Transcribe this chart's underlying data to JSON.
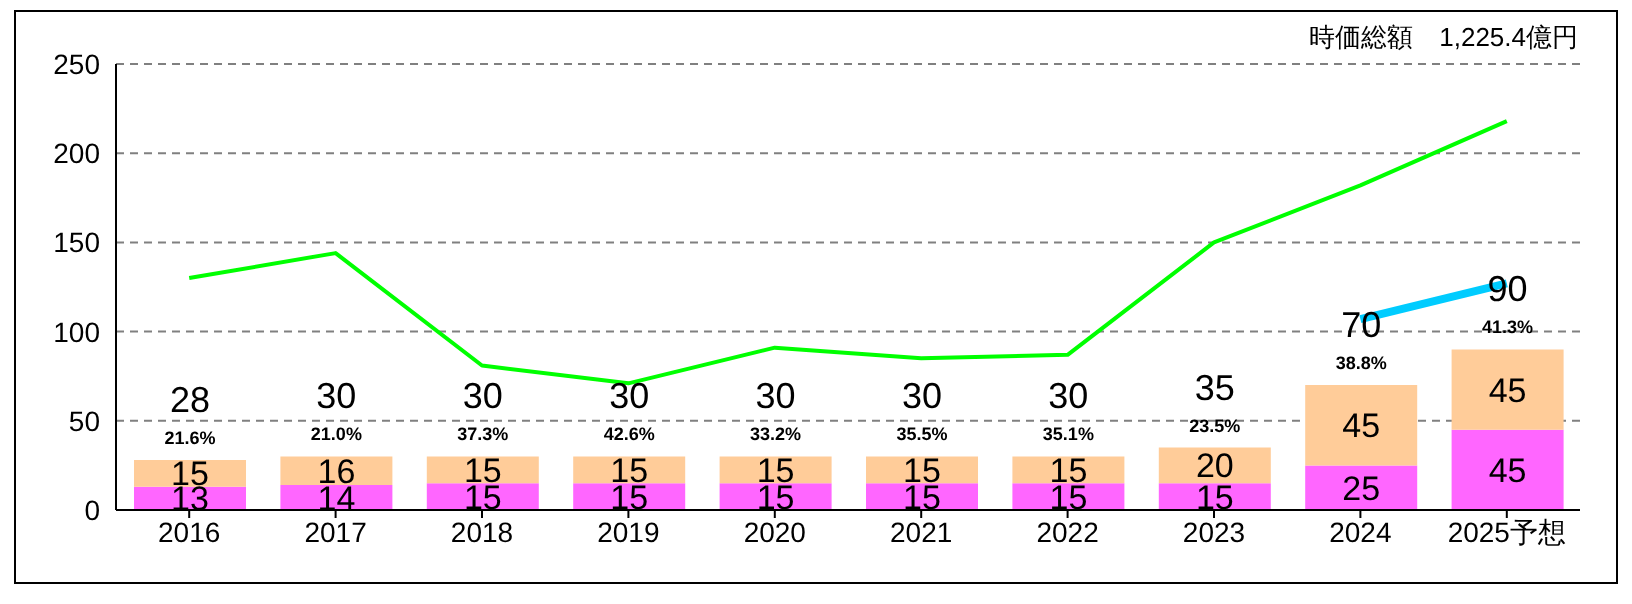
{
  "chart_data": {
    "type": "bar",
    "subtitle": "時価総額　1,225.4億円",
    "categories": [
      "2016",
      "2017",
      "2018",
      "2019",
      "2020",
      "2021",
      "2022",
      "2023",
      "2024",
      "2025予想"
    ],
    "stacked": true,
    "series": [
      {
        "color": "#ff66ff",
        "values": [
          13,
          14,
          15,
          15,
          15,
          15,
          15,
          15,
          25,
          45
        ],
        "value_labels": [
          "13",
          "14",
          "15",
          "15",
          "15",
          "15",
          "15",
          "15",
          "25",
          "45"
        ]
      },
      {
        "color": "#ffcc99",
        "values": [
          15,
          16,
          15,
          15,
          15,
          15,
          15,
          20,
          45,
          45
        ],
        "value_labels": [
          "15",
          "16",
          "15",
          "15",
          "15",
          "15",
          "15",
          "20",
          "45",
          "45"
        ]
      },
      {
        "type": "line",
        "color": "#00ff00",
        "values": [
          130,
          144,
          81,
          71,
          91,
          85,
          87,
          150,
          182,
          218
        ]
      },
      {
        "type": "line",
        "color": "#00ccff",
        "values": [
          null,
          null,
          null,
          null,
          null,
          null,
          null,
          null,
          107,
          127
        ]
      }
    ],
    "totals": [
      "28",
      "30",
      "30",
      "30",
      "30",
      "30",
      "30",
      "35",
      "70",
      "90"
    ],
    "annotations": [
      "21.6%",
      "21.0%",
      "37.3%",
      "42.6%",
      "33.2%",
      "35.5%",
      "35.1%",
      "23.5%",
      "38.8%",
      "41.3%"
    ],
    "ylim": [
      0,
      250
    ],
    "yticks": [
      0,
      50,
      100,
      150,
      200,
      250
    ],
    "grid": "y"
  }
}
